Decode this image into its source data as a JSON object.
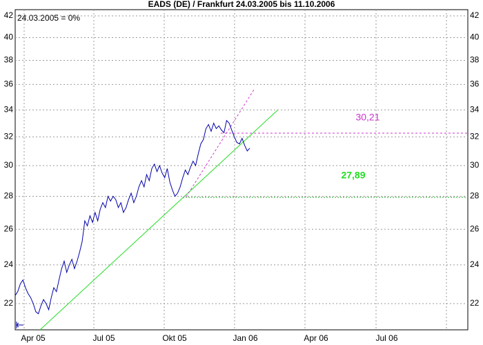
{
  "chart_data": {
    "type": "line",
    "title": "EADS (DE) / Frankfurt 24.03.2005 bis 11.10.2006",
    "subtitle": "24.03.2005 = 0%",
    "log_scale": true,
    "grid": true,
    "x_labels": [
      "Apr 05",
      "Jul 05",
      "Okt 05",
      "Jan 06",
      "Apr 06",
      "Jul 06"
    ],
    "ylim": [
      20.74,
      42.59
    ],
    "yticks": [
      22,
      24,
      26,
      28,
      30,
      32,
      34,
      36,
      38,
      40,
      42
    ],
    "annotations": [
      {
        "text": "30,21",
        "color": "#cc33cc"
      },
      {
        "text": "27,89",
        "color": "#22dd22"
      }
    ],
    "series": [
      {
        "name": "EADS",
        "color": "#0000aa",
        "values": [
          22.4,
          22.6,
          23.0,
          23.2,
          22.8,
          22.5,
          22.3,
          22.0,
          21.6,
          21.5,
          21.9,
          22.2,
          22.0,
          21.7,
          22.3,
          22.8,
          22.6,
          23.2,
          23.8,
          24.2,
          23.6,
          24.0,
          24.3,
          23.8,
          24.2,
          24.7,
          25.3,
          26.5,
          26.2,
          26.8,
          26.4,
          27.0,
          26.5,
          27.2,
          27.6,
          27.3,
          28.0,
          27.7,
          28.0,
          27.8,
          27.3,
          27.6,
          27.0,
          27.3,
          27.8,
          28.2,
          27.6,
          28.0,
          28.6,
          29.0,
          28.6,
          29.4,
          29.0,
          29.8,
          30.1,
          29.6,
          30.0,
          29.5,
          29.2,
          29.8,
          28.9,
          28.4,
          28.0,
          28.2,
          28.6,
          29.2,
          29.7,
          29.4,
          29.9,
          30.3,
          30.0,
          30.8,
          31.5,
          31.8,
          32.6,
          32.9,
          32.4,
          33.0,
          32.6,
          32.8,
          32.5,
          32.3,
          33.2,
          33.0,
          32.5,
          32.0,
          31.6,
          31.5,
          31.9,
          31.4,
          31.0,
          31.2
        ]
      }
    ]
  }
}
